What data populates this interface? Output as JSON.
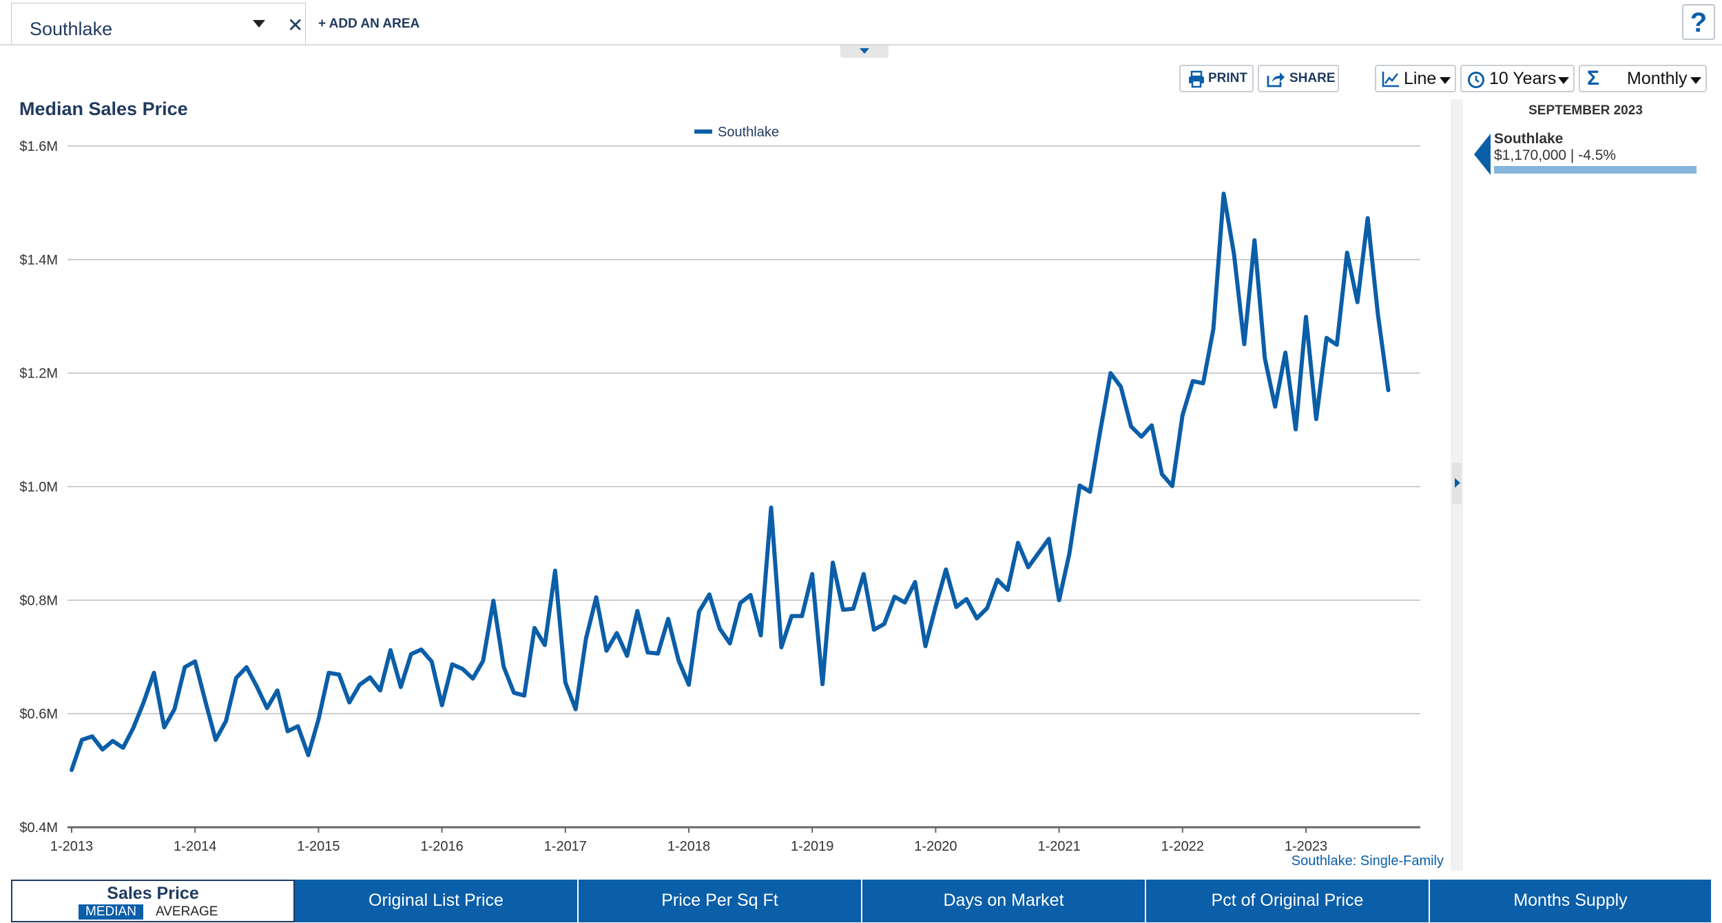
{
  "area_selector": {
    "value": "Southlake",
    "add_label": "+ ADD AN AREA",
    "help_label": "?"
  },
  "toolbar": {
    "print_label": "PRINT",
    "share_label": "SHARE",
    "chart_type": "Line",
    "time_range": "10 Years",
    "interval": "Monthly"
  },
  "chart": {
    "title": "Median Sales Price",
    "footnote": "Southlake: Single-Family"
  },
  "side_panel": {
    "date": "SEPTEMBER 2023",
    "area": "Southlake",
    "value": "$1,170,000 | -4.5%"
  },
  "metric_tabs": {
    "sales_price": "Sales Price",
    "median": "MEDIAN",
    "average": "AVERAGE",
    "tabs": [
      "Original List Price",
      "Price Per Sq Ft",
      "Days on Market",
      "Pct of Original Price",
      "Months Supply"
    ]
  },
  "colors": {
    "series": "#0b5ea8",
    "title": "#1f3a5f",
    "grid": "#bdbdbd"
  },
  "chart_data": {
    "type": "line",
    "title": "Median Sales Price",
    "xlabel": "",
    "ylabel": "",
    "x_ticks": [
      "1-2013",
      "1-2014",
      "1-2015",
      "1-2016",
      "1-2017",
      "1-2018",
      "1-2019",
      "1-2020",
      "1-2021",
      "1-2022",
      "1-2023"
    ],
    "y_ticks": [
      "$0.4M",
      "$0.6M",
      "$0.8M",
      "$1.0M",
      "$1.2M",
      "$1.4M",
      "$1.6M"
    ],
    "ylim": [
      0.4,
      1.6
    ],
    "y_unit": "$M",
    "x_start": "1-2013",
    "x_end": "9-2023",
    "legend": "top-center",
    "grid": true,
    "series": [
      {
        "name": "Southlake",
        "values": [
          0.501,
          0.554,
          0.56,
          0.537,
          0.552,
          0.54,
          0.575,
          0.62,
          0.672,
          0.576,
          0.608,
          0.682,
          0.692,
          0.622,
          0.554,
          0.587,
          0.663,
          0.682,
          0.648,
          0.61,
          0.641,
          0.569,
          0.578,
          0.527,
          0.59,
          0.672,
          0.669,
          0.62,
          0.651,
          0.664,
          0.641,
          0.712,
          0.647,
          0.705,
          0.713,
          0.692,
          0.615,
          0.687,
          0.679,
          0.662,
          0.693,
          0.799,
          0.683,
          0.637,
          0.632,
          0.751,
          0.721,
          0.852,
          0.655,
          0.608,
          0.732,
          0.805,
          0.711,
          0.742,
          0.702,
          0.781,
          0.708,
          0.706,
          0.767,
          0.694,
          0.651,
          0.78,
          0.81,
          0.75,
          0.724,
          0.795,
          0.809,
          0.738,
          0.963,
          0.717,
          0.772,
          0.772,
          0.846,
          0.652,
          0.866,
          0.783,
          0.785,
          0.846,
          0.748,
          0.758,
          0.806,
          0.796,
          0.832,
          0.719,
          0.789,
          0.854,
          0.788,
          0.802,
          0.768,
          0.786,
          0.836,
          0.818,
          0.901,
          0.858,
          0.883,
          0.908,
          0.8,
          0.882,
          1.002,
          0.991,
          1.098,
          1.2,
          1.176,
          1.106,
          1.088,
          1.108,
          1.022,
          1.001,
          1.126,
          1.186,
          1.182,
          1.278,
          1.516,
          1.41,
          1.251,
          1.434,
          1.226,
          1.141,
          1.236,
          1.101,
          1.299,
          1.119,
          1.262,
          1.25,
          1.412,
          1.325,
          1.473,
          1.303,
          1.17
        ]
      }
    ]
  }
}
